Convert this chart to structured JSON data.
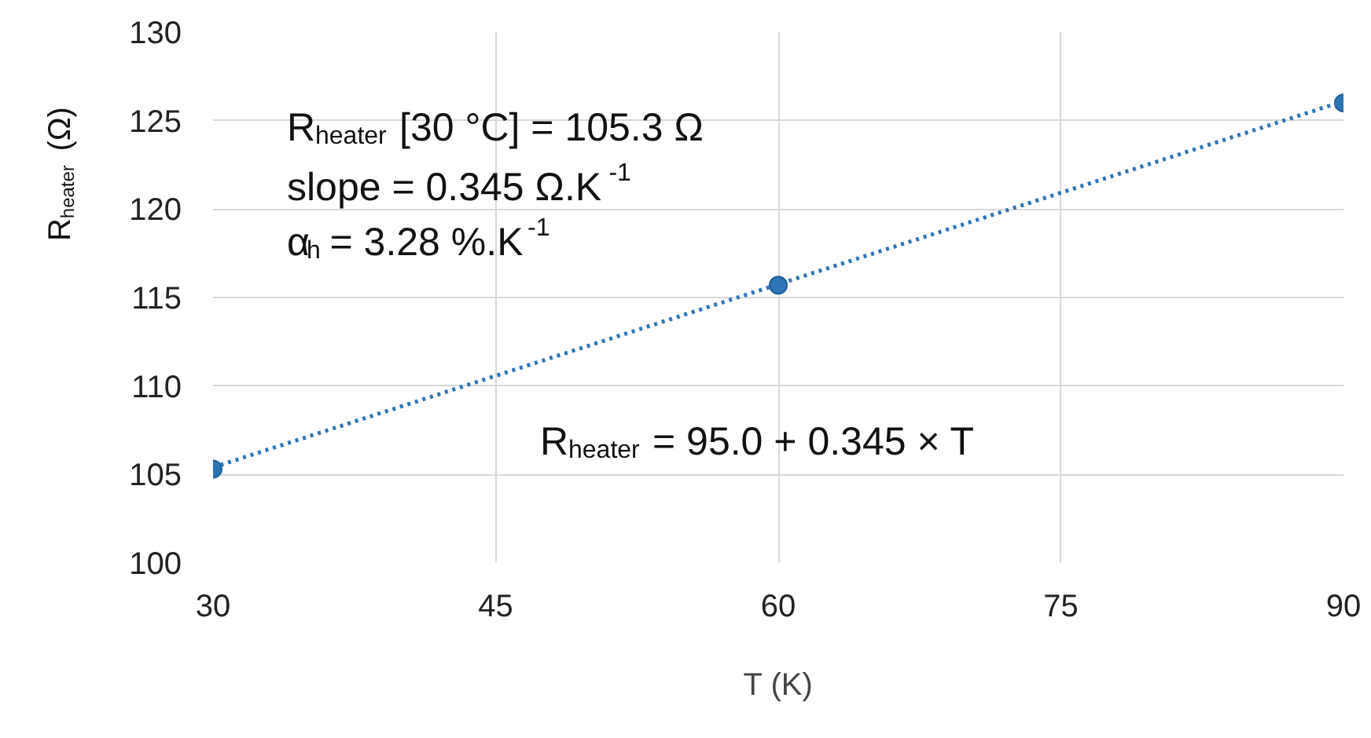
{
  "chart_data": {
    "type": "scatter",
    "xlabel": "T (K)",
    "ylabel": "R$_{heater}$ (Ω)",
    "xlim": [
      30,
      90
    ],
    "ylim": [
      100,
      130
    ],
    "xticks": [
      30,
      45,
      60,
      75,
      90
    ],
    "yticks": [
      100,
      105,
      110,
      115,
      120,
      125,
      130
    ],
    "grid": true,
    "series": [
      {
        "color": "#2e75b6",
        "marker": "circle",
        "x": [
          30,
          60,
          90
        ],
        "values": [
          105.3,
          115.7,
          126.0
        ]
      },
      {
        "type": "line",
        "color": "#2e75b6",
        "line_style": "dotted",
        "x": [
          30,
          90
        ],
        "values": [
          105.4,
          126.1
        ]
      }
    ],
    "annotations": [
      "R$_{heater}$ [30 °C] = 105.3 Ω",
      "slope = 0.345 Ω.K$^{-1}$",
      "α$_{h}$ = 3.28 %.K$^{-1}$",
      "R$_{heater}$ = 95.0 + 0.345 × T"
    ]
  }
}
